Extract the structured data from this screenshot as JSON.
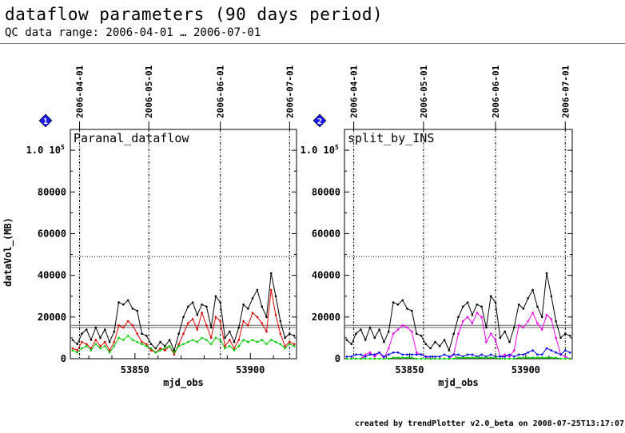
{
  "page": {
    "title": "dataflow parameters (90 days period)",
    "subtitle": "QC data range: 2006-04-01 … 2006-07-01",
    "footer": "created by trendPlotter v2.0_beta on 2008-07-25T13:17:07"
  },
  "colors": {
    "black": "#000000",
    "red": "#dd0000",
    "green": "#00cc00",
    "magenta": "#ee00ee",
    "blue": "#0000ee",
    "badge": "#1a1aee",
    "reference_line": "#666666"
  },
  "chart_data": [
    {
      "type": "line",
      "badge": "1",
      "title": "Paranal_dataflow",
      "xlabel": "mjd_obs",
      "ylabel": "dataVol_(MB)",
      "xlim": [
        53822,
        53920
      ],
      "ylim": [
        0,
        110000
      ],
      "y_ticks": [
        0,
        20000,
        40000,
        60000,
        80000
      ],
      "y_tick_labels": [
        "0",
        "20000",
        "40000",
        "60000",
        "80000"
      ],
      "y_top_label": {
        "value": 100000,
        "mantissa": "1.0",
        "power": "10",
        "exp": "5"
      },
      "x_ticks": [
        53850,
        53900
      ],
      "x_tick_labels": [
        "53850",
        "53900"
      ],
      "date_markers": [
        {
          "x": 53826,
          "label": "2006-04-01"
        },
        {
          "x": 53856,
          "label": "2006-05-01"
        },
        {
          "x": 53887,
          "label": "2006-06-01"
        },
        {
          "x": 53917,
          "label": "2006-07-01"
        }
      ],
      "hlines": [
        {
          "y": 49000,
          "style": "dotted"
        },
        {
          "y": 16000,
          "style": "solid"
        },
        {
          "y": 15000,
          "style": "solid"
        }
      ],
      "x": [
        53823,
        53825,
        53827,
        53829,
        53831,
        53833,
        53835,
        53837,
        53839,
        53841,
        53843,
        53845,
        53847,
        53849,
        53851,
        53853,
        53855,
        53857,
        53859,
        53861,
        53863,
        53865,
        53867,
        53869,
        53871,
        53873,
        53875,
        53877,
        53879,
        53881,
        53883,
        53885,
        53887,
        53889,
        53891,
        53893,
        53895,
        53897,
        53899,
        53901,
        53903,
        53905,
        53907,
        53909,
        53911,
        53913,
        53915,
        53917,
        53919
      ],
      "series": [
        {
          "color": "black",
          "values": [
            9000,
            7000,
            12000,
            14000,
            9000,
            15000,
            10000,
            14000,
            8000,
            13000,
            27000,
            26000,
            28000,
            24000,
            23000,
            12000,
            11000,
            7000,
            5000,
            8000,
            6000,
            9000,
            4000,
            12000,
            20000,
            25000,
            27000,
            21000,
            26000,
            25000,
            15000,
            30000,
            27000,
            10000,
            13000,
            8000,
            15000,
            26000,
            24000,
            29000,
            33000,
            25000,
            20000,
            41000,
            30000,
            18000,
            10000,
            12000,
            11000
          ]
        },
        {
          "color": "red",
          "values": [
            5000,
            4000,
            8000,
            7000,
            5000,
            9000,
            6000,
            8000,
            4000,
            8000,
            16000,
            15000,
            18000,
            16000,
            12000,
            8000,
            7000,
            4000,
            3000,
            5000,
            4000,
            6000,
            2000,
            7000,
            12000,
            17000,
            19000,
            14000,
            22000,
            16000,
            10000,
            20000,
            18000,
            6000,
            9000,
            5000,
            9000,
            18000,
            16000,
            22000,
            20000,
            17000,
            13000,
            33000,
            21000,
            12000,
            6000,
            8000,
            7000
          ]
        },
        {
          "color": "green",
          "values": [
            4000,
            3000,
            5000,
            6000,
            4000,
            7000,
            5000,
            6000,
            3000,
            6000,
            10000,
            9000,
            11000,
            9000,
            8000,
            7000,
            6000,
            5000,
            3000,
            4000,
            5000,
            6000,
            3000,
            6000,
            7000,
            8000,
            9000,
            8000,
            10000,
            9000,
            7000,
            10000,
            9000,
            5000,
            6000,
            4000,
            6000,
            9000,
            8000,
            9000,
            8000,
            9000,
            7000,
            9000,
            8000,
            7000,
            5000,
            7000,
            6000
          ]
        }
      ]
    },
    {
      "type": "line",
      "badge": "2",
      "title": "split_by_INS",
      "xlabel": "mjd_obs",
      "ylabel": "",
      "xlim": [
        53822,
        53920
      ],
      "ylim": [
        0,
        110000
      ],
      "y_ticks": [
        0,
        20000,
        40000,
        60000,
        80000
      ],
      "y_tick_labels": [
        "0",
        "20000",
        "40000",
        "60000",
        "80000"
      ],
      "y_top_label": {
        "value": 100000,
        "mantissa": "1.0",
        "power": "10",
        "exp": "5"
      },
      "x_ticks": [
        53850,
        53900
      ],
      "x_tick_labels": [
        "53850",
        "53900"
      ],
      "date_markers": [
        {
          "x": 53826,
          "label": "2006-04-01"
        },
        {
          "x": 53856,
          "label": "2006-05-01"
        },
        {
          "x": 53887,
          "label": "2006-06-01"
        },
        {
          "x": 53917,
          "label": "2006-07-01"
        }
      ],
      "hlines": [
        {
          "y": 49000,
          "style": "dotted"
        },
        {
          "y": 16000,
          "style": "solid"
        },
        {
          "y": 15000,
          "style": "solid"
        }
      ],
      "x": [
        53823,
        53825,
        53827,
        53829,
        53831,
        53833,
        53835,
        53837,
        53839,
        53841,
        53843,
        53845,
        53847,
        53849,
        53851,
        53853,
        53855,
        53857,
        53859,
        53861,
        53863,
        53865,
        53867,
        53869,
        53871,
        53873,
        53875,
        53877,
        53879,
        53881,
        53883,
        53885,
        53887,
        53889,
        53891,
        53893,
        53895,
        53897,
        53899,
        53901,
        53903,
        53905,
        53907,
        53909,
        53911,
        53913,
        53915,
        53917,
        53919
      ],
      "series": [
        {
          "color": "black",
          "values": [
            9000,
            7000,
            12000,
            14000,
            9000,
            15000,
            10000,
            14000,
            8000,
            13000,
            27000,
            26000,
            28000,
            24000,
            23000,
            12000,
            11000,
            7000,
            5000,
            8000,
            6000,
            9000,
            4000,
            12000,
            20000,
            25000,
            27000,
            21000,
            26000,
            25000,
            15000,
            30000,
            27000,
            10000,
            13000,
            8000,
            15000,
            26000,
            24000,
            29000,
            33000,
            25000,
            20000,
            41000,
            30000,
            18000,
            10000,
            12000,
            11000
          ]
        },
        {
          "color": "magenta",
          "values": [
            0,
            0,
            0,
            0,
            2000,
            3000,
            1000,
            3000,
            0,
            5000,
            12000,
            14000,
            16000,
            15000,
            13000,
            3000,
            2000,
            1000,
            0,
            0,
            0,
            0,
            0,
            2000,
            12000,
            18000,
            20000,
            17000,
            22000,
            20000,
            8000,
            12000,
            9000,
            1000,
            2000,
            1000,
            4000,
            16000,
            15000,
            18000,
            22000,
            17000,
            14000,
            21000,
            19000,
            10000,
            2000,
            1000,
            0
          ]
        },
        {
          "color": "blue",
          "values": [
            1000,
            1000,
            2000,
            2000,
            1000,
            2000,
            2000,
            3000,
            1000,
            2000,
            3000,
            3000,
            2000,
            2000,
            2000,
            2000,
            2000,
            1000,
            1000,
            1000,
            1000,
            2000,
            1000,
            2000,
            2000,
            1000,
            2000,
            2000,
            1000,
            2000,
            1000,
            2000,
            1000,
            1000,
            1000,
            2000,
            1000,
            2000,
            2000,
            3000,
            4000,
            2000,
            2000,
            5000,
            4000,
            3000,
            2000,
            4000,
            3000
          ]
        },
        {
          "color": "green",
          "values": [
            0,
            0,
            0,
            0,
            0,
            0,
            0,
            0,
            0,
            0,
            500,
            500,
            500,
            500,
            500,
            0,
            0,
            0,
            0,
            0,
            0,
            0,
            0,
            0,
            500,
            500,
            500,
            500,
            500,
            500,
            500,
            500,
            500,
            0,
            0,
            0,
            0,
            500,
            500,
            500,
            500,
            500,
            500,
            500,
            500,
            500,
            0,
            0,
            0
          ]
        }
      ]
    }
  ]
}
